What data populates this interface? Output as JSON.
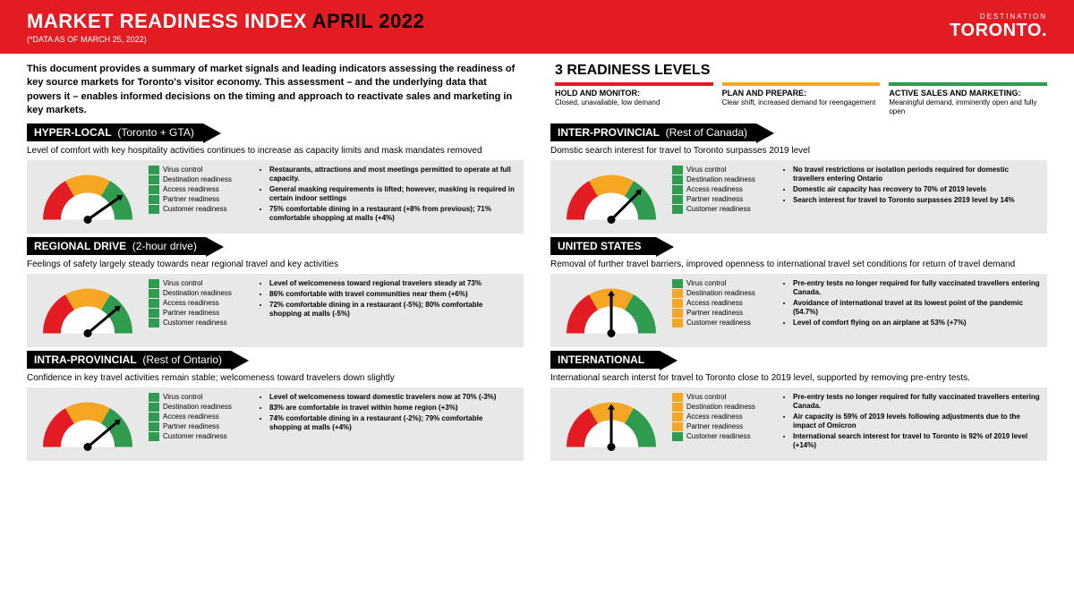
{
  "header": {
    "title_prefix": "MARKET READINESS INDEX ",
    "title_month": "APRIL 2022",
    "subtitle": "(*DATA AS OF MARCH 25, 2022)",
    "logo_top": "DESTINATION",
    "logo_bottom": "TORONTO."
  },
  "intro": "This document provides a summary of market signals and leading indicators assessing the readiness of key source markets for Toronto's visitor economy. This assessment – and the underlying data that powers it – enables informed decisions on the timing and approach to reactivate sales and marketing in key markets.",
  "legend": {
    "title": "3 READINESS LEVELS",
    "items": [
      {
        "color": "#e31b23",
        "label": "HOLD AND MONITOR:",
        "desc": "Closed, unavailable, low demand"
      },
      {
        "color": "#f5a623",
        "label": "PLAN AND PREPARE:",
        "desc": "Clear shift, increased demand for reengagement"
      },
      {
        "color": "#2e9b4f",
        "label": "ACTIVE SALES AND MARKETING:",
        "desc": "Meaningful demand, imminently open and fully open"
      }
    ]
  },
  "readiness_labels": [
    "Virus control",
    "Destination readiness",
    "Access readiness",
    "Partner readiness",
    "Customer readiness"
  ],
  "gauge_colors": {
    "red": "#e31b23",
    "yellow": "#f5a623",
    "green": "#2e9b4f",
    "needle": "#000000",
    "bg": "#ffffff"
  },
  "markets": [
    {
      "name": "HYPER-LOCAL",
      "sub": "(Toronto + GTA)",
      "desc": "Level of comfort with key hospitality activities continues to increase as capacity limits and mask mandates removed",
      "gauge_angle": 145,
      "readiness_colors": [
        "#2e9b4f",
        "#2e9b4f",
        "#2e9b4f",
        "#2e9b4f",
        "#2e9b4f"
      ],
      "bullets": [
        "Restaurants, attractions and most meetings permitted to operate at full capacity.",
        "General masking requirements is lifted; however, masking is required in certain indoor settings",
        "75% comfortable dining in a restaurant (+8% from previous); 71% comfortable shopping at malls (+4%)"
      ]
    },
    {
      "name": "REGIONAL DRIVE",
      "sub": "(2-hour drive)",
      "desc": "Feelings of safety largely steady towards near regional travel and key activities",
      "gauge_angle": 140,
      "readiness_colors": [
        "#2e9b4f",
        "#2e9b4f",
        "#2e9b4f",
        "#2e9b4f",
        "#2e9b4f"
      ],
      "bullets": [
        "Level of welcomeness toward regional travelers steady at 73%",
        "86%  comfortable with travel communities near them (+6%)",
        "72% comfortable dining in a restaurant (-5%); 80% comfortable shopping at malls (-5%)"
      ]
    },
    {
      "name": "INTRA-PROVINCIAL",
      "sub": "(Rest of Ontario)",
      "desc": "Confidence in key travel activities remain stable; welcomeness toward travelers down slightly",
      "gauge_angle": 140,
      "readiness_colors": [
        "#2e9b4f",
        "#2e9b4f",
        "#2e9b4f",
        "#2e9b4f",
        "#2e9b4f"
      ],
      "bullets": [
        "Level of welcomeness toward domestic travelers now at 70% (-3%)",
        "83% are comfortable in travel within home region (+3%)",
        "74% comfortable dining in a restaurant (-2%); 79% comfortable shopping at malls (+4%)"
      ]
    },
    {
      "name": "INTER-PROVINCIAL",
      "sub": "(Rest of Canada)",
      "desc": "Domstic search interest for travel to Toronto surpasses 2019 level",
      "gauge_angle": 135,
      "readiness_colors": [
        "#2e9b4f",
        "#2e9b4f",
        "#2e9b4f",
        "#2e9b4f",
        "#2e9b4f"
      ],
      "bullets": [
        "No travel restrictions or isolation periods required for domestic travellers entering Ontario",
        "Domestic air capacity has recovery to 70% of 2019 levels",
        "Search interest for travel to Toronto surpasses 2019 level by 14%"
      ]
    },
    {
      "name": "UNITED STATES",
      "sub": "",
      "desc": "Removal of further travel barriers, improved openness to international travel set conditions for return of travel demand",
      "gauge_angle": 90,
      "readiness_colors": [
        "#2e9b4f",
        "#f5a623",
        "#f5a623",
        "#f5a623",
        "#f5a623"
      ],
      "bullets": [
        "Pre-entry tests no longer required for fully vaccinated travellers entering Canada.",
        "Avoidance of international travel at its lowest point of the pandemic (54.7%)",
        "Level of comfort flying on an airplane at 53% (+7%)"
      ]
    },
    {
      "name": "INTERNATIONAL",
      "sub": "",
      "desc": "International search interst for travel to Toronto close to 2019 level, supported by removing pre-entry tests.",
      "gauge_angle": 90,
      "readiness_colors": [
        "#f5a623",
        "#f5a623",
        "#f5a623",
        "#f5a623",
        "#2e9b4f"
      ],
      "bullets": [
        "Pre-entry tests no longer required for fully vaccinated travellers entering Canada.",
        "Air capacity is 59% of 2019 levels following adjustments due to the impact of Omicron",
        "International search interest for travel to Toronto is 92% of 2019 level (+14%)"
      ]
    }
  ]
}
